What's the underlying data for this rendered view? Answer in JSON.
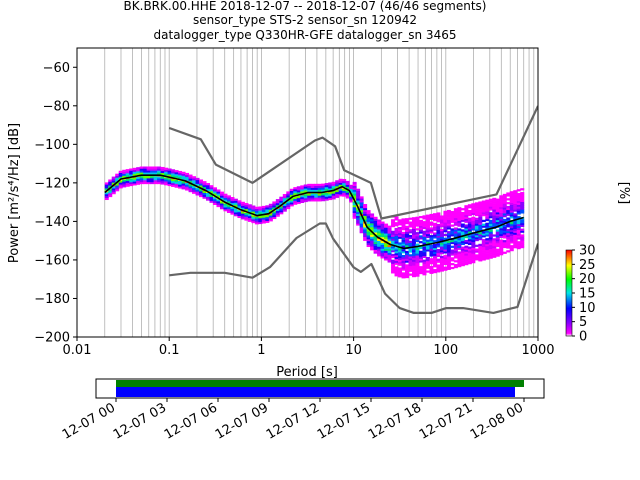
{
  "chart_data": {
    "type": "heatmap",
    "title_lines": [
      "BK.BRK.00.HHE   2018-12-07 -- 2018-12-07  (46/46 segments)",
      "sensor_type STS-2 sensor_sn 120942",
      "datalogger_type Q330HR-GFE datalogger_sn 3465"
    ],
    "xlabel": "Period [s]",
    "ylabel": "Power [m²/s⁴/Hz] [dB]",
    "x_scale": "log",
    "xlim": [
      0.01,
      1000
    ],
    "ylim": [
      -200,
      -50
    ],
    "x_ticks": [
      "0.01",
      "0.1",
      "1",
      "10",
      "100",
      "1000"
    ],
    "y_ticks": [
      "−200",
      "−180",
      "−160",
      "−140",
      "−120",
      "−100",
      "−80",
      "−60"
    ],
    "grid": "vertical log grid",
    "colorbar": {
      "label": "[%]",
      "min": 0,
      "max": 30,
      "ticks": [
        "0",
        "5",
        "10",
        "15",
        "20",
        "25",
        "30"
      ]
    },
    "series": [
      {
        "name": "",
        "style": "gray-upper-noise-model",
        "x": [
          0.1,
          0.22,
          0.32,
          0.8,
          3.8,
          4.6,
          6.3,
          7.9,
          15.4,
          20,
          354.8,
          10000
        ],
        "y": [
          -91.5,
          -97.4,
          -110.5,
          -120.0,
          -98.0,
          -96.5,
          -101.0,
          -113.5,
          -120.0,
          -138.5,
          -126.0,
          -80.1
        ]
      },
      {
        "name": "",
        "style": "gray-lower-noise-model",
        "x": [
          0.1,
          0.17,
          0.4,
          0.8,
          1.24,
          2.4,
          4.3,
          5.0,
          6.0,
          10.0,
          12.0,
          15.6,
          21.9,
          31.6,
          45.0,
          70.0,
          101.0,
          154.0,
          328.0,
          600.0,
          10000
        ],
        "y": [
          -168.0,
          -166.7,
          -166.7,
          -169.2,
          -163.7,
          -148.6,
          -141.1,
          -141.1,
          -149.0,
          -163.8,
          -166.2,
          -162.1,
          -177.5,
          -185.0,
          -187.5,
          -187.5,
          -185.0,
          -185.0,
          -187.5,
          -184.4,
          -151.5
        ]
      },
      {
        "name": "",
        "style": "mean-black",
        "x": [
          0.02,
          0.03,
          0.05,
          0.08,
          0.1,
          0.15,
          0.25,
          0.4,
          0.6,
          0.9,
          1.2,
          1.6,
          2.2,
          3.2,
          4.5,
          6.0,
          7.5,
          9.0,
          11.0,
          14.0,
          18.0,
          25.0,
          35.0,
          50.0,
          80.0,
          120.0,
          200.0,
          350.0,
          500.0,
          700.0
        ],
        "y": [
          -125,
          -118,
          -116,
          -116,
          -117,
          -119,
          -124,
          -130,
          -134,
          -137,
          -136,
          -132,
          -127,
          -125,
          -125,
          -124,
          -122,
          -124,
          -132,
          -143,
          -148,
          -152,
          -154,
          -153,
          -151,
          -149,
          -146,
          -143,
          -140,
          -138
        ]
      }
    ]
  }
}
